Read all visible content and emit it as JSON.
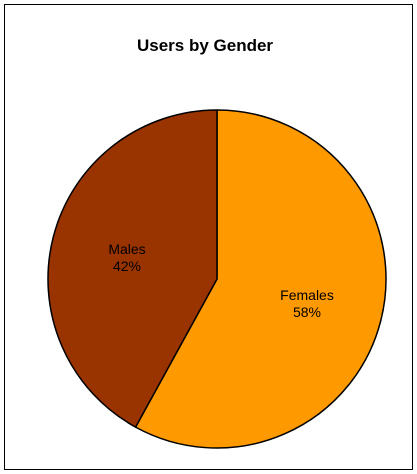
{
  "chart_data": {
    "type": "pie",
    "title": "Users by Gender",
    "slices": [
      {
        "label": "Females",
        "value": 58,
        "value_label": "58%",
        "color": "#FF9900"
      },
      {
        "label": "Males",
        "value": 42,
        "value_label": "42%",
        "color": "#993300"
      }
    ],
    "start_angle_deg": 0,
    "direction": "clockwise",
    "border_color": "#000000",
    "legend": "none"
  }
}
